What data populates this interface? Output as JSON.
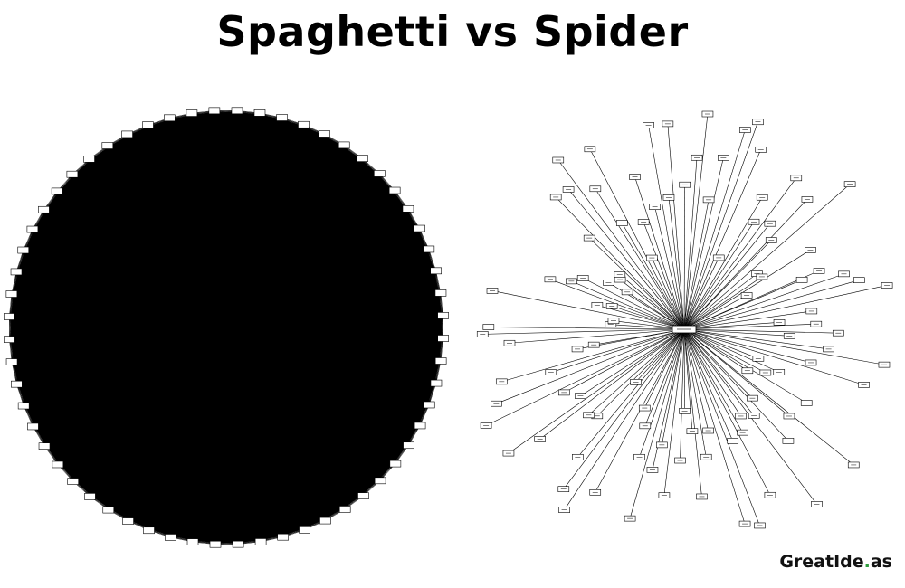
{
  "title": "Spaghetti vs Spider",
  "brand": {
    "text_before_dot": "GreatIde",
    "dot": ".",
    "text_after_dot": "as",
    "dot_color": "#2e9e3e"
  },
  "colors": {
    "ink": "#000000",
    "node_fill": "#ffffff",
    "background": "#ffffff"
  },
  "spaghetti": {
    "layout": "circle",
    "topology": "fully-connected",
    "node_count": 60
  },
  "spider": {
    "layout": "radial",
    "topology": "star",
    "leaf_count": 110,
    "hub_count": 1
  }
}
